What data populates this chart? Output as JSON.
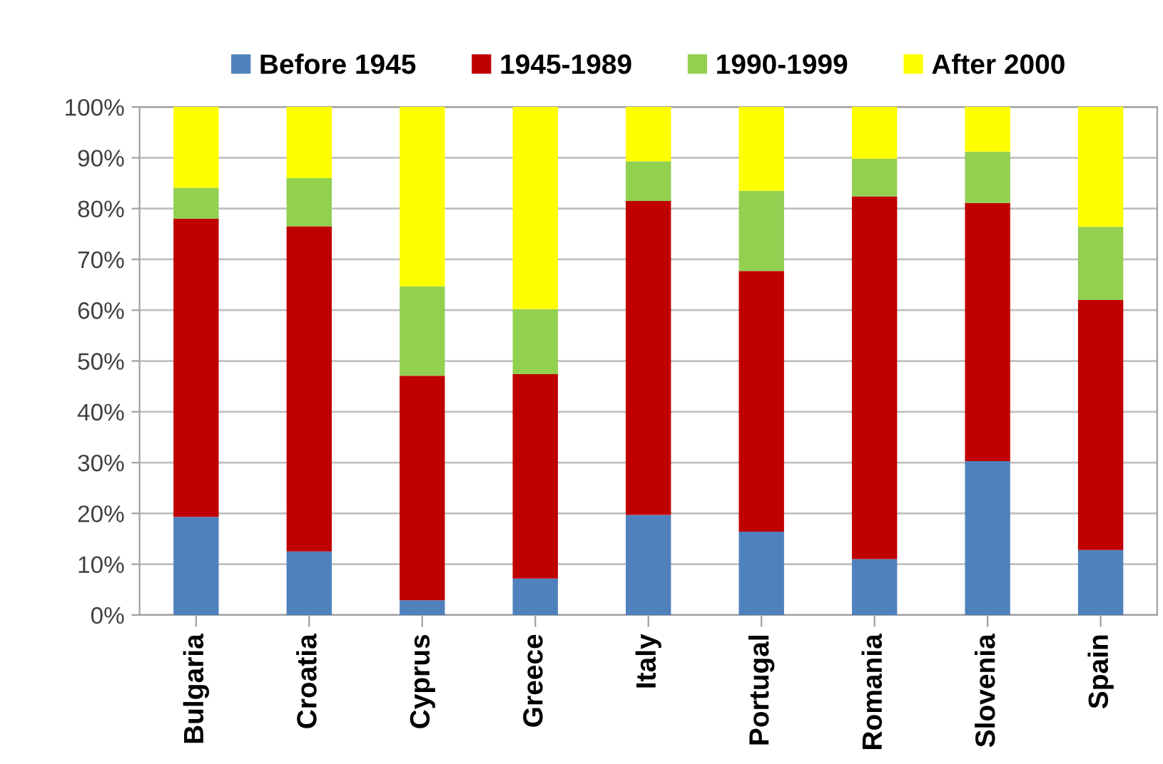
{
  "chart_data": {
    "type": "bar",
    "stacked": true,
    "categories": [
      "Bulgaria",
      "Croatia",
      "Cyprus",
      "Greece",
      "Italy",
      "Portugal",
      "Romania",
      "Slovenia",
      "Spain"
    ],
    "series": [
      {
        "name": "Before 1945",
        "color": "#4f81bd",
        "values": [
          19.3,
          12.5,
          2.9,
          7.2,
          19.7,
          16.4,
          11.0,
          30.3,
          12.8
        ]
      },
      {
        "name": "1945-1989",
        "color": "#c00000",
        "values": [
          58.7,
          64.0,
          44.2,
          40.2,
          61.8,
          51.3,
          71.4,
          50.8,
          49.2
        ]
      },
      {
        "name": "1990-1999",
        "color": "#92d050",
        "values": [
          6.1,
          9.5,
          17.6,
          12.8,
          7.8,
          15.8,
          7.4,
          10.1,
          14.4
        ]
      },
      {
        "name": "After 2000",
        "color": "#ffff00",
        "values": [
          15.9,
          14.0,
          35.3,
          39.8,
          10.7,
          16.5,
          10.2,
          8.8,
          23.6
        ]
      }
    ],
    "ylim": [
      0,
      100
    ],
    "yticks": [
      {
        "value": 0,
        "label": "0%"
      },
      {
        "value": 10,
        "label": "10%"
      },
      {
        "value": 20,
        "label": "20%"
      },
      {
        "value": 30,
        "label": "30%"
      },
      {
        "value": 40,
        "label": "40%"
      },
      {
        "value": 50,
        "label": "50%"
      },
      {
        "value": 60,
        "label": "60%"
      },
      {
        "value": 70,
        "label": "70%"
      },
      {
        "value": 80,
        "label": "80%"
      },
      {
        "value": 90,
        "label": "90%"
      },
      {
        "value": 100,
        "label": "100%"
      }
    ],
    "grid": "y",
    "legend": "top"
  }
}
